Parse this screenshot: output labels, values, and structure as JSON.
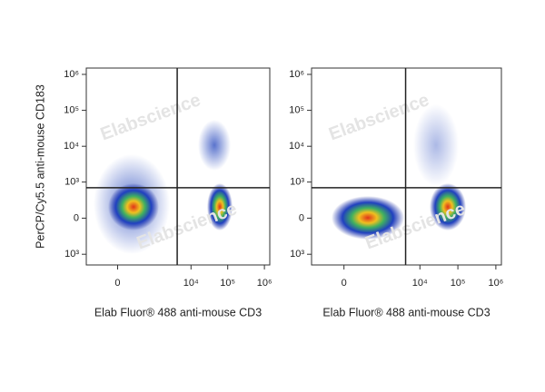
{
  "chart_data": [
    {
      "type": "scatter",
      "x_label": "Elab Fluor® 488 anti-mouse CD3",
      "y_label": "PerCP/Cy5.5 anti-mouse CD183",
      "scale": "biexponential",
      "xlim": [
        -700,
        1400000
      ],
      "ylim": [
        -2000,
        1500000
      ],
      "xticks": [
        0,
        {
          "value": 10000,
          "label": "10⁴"
        },
        {
          "value": 100000,
          "label": "10⁵"
        },
        {
          "value": 1000000,
          "label": "10⁶"
        }
      ],
      "yticks": [
        {
          "value": -1000,
          "label": "10³"
        },
        0,
        {
          "value": 1000,
          "label": "10³"
        },
        {
          "value": 10000,
          "label": "10⁴"
        },
        {
          "value": 100000,
          "label": "10⁵"
        },
        {
          "value": 1000000,
          "label": "10⁶"
        }
      ],
      "gate_x": 4200,
      "gate_y": 690,
      "watermark": "Elabscience"
    },
    {
      "type": "scatter",
      "x_label": "Elab Fluor® 488 anti-mouse CD3",
      "scale": "biexponential",
      "xlim": [
        -700,
        1400000
      ],
      "ylim": [
        -2000,
        1500000
      ],
      "xticks": [
        0,
        {
          "value": 10000,
          "label": "10⁴"
        },
        {
          "value": 100000,
          "label": "10⁵"
        },
        {
          "value": 1000000,
          "label": "10⁶"
        }
      ],
      "yticks": [
        {
          "value": -1000,
          "label": "10³"
        },
        0,
        {
          "value": 1000,
          "label": "10³"
        },
        {
          "value": 10000,
          "label": "10⁴"
        },
        {
          "value": 100000,
          "label": "10⁵"
        },
        {
          "value": 1000000,
          "label": "10⁶"
        }
      ],
      "gate_x": 4200,
      "gate_y": 690,
      "watermark": "Elabscience"
    }
  ]
}
